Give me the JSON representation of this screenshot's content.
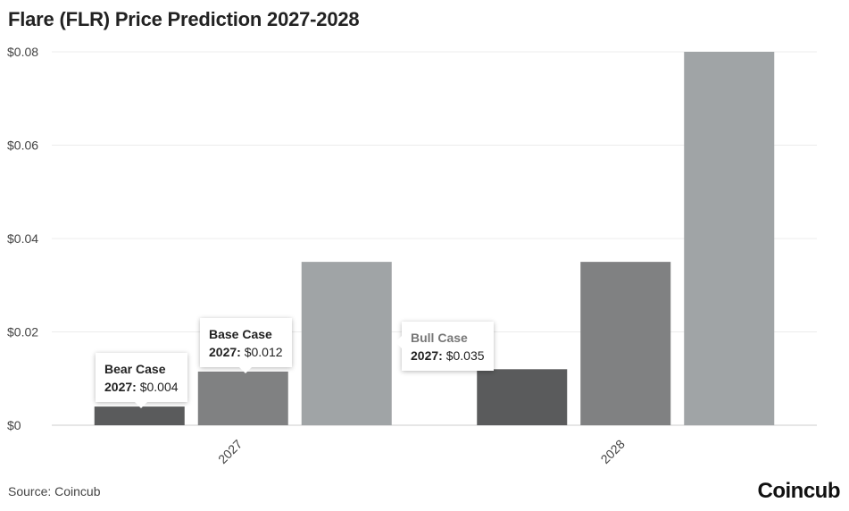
{
  "chart_data": {
    "type": "bar",
    "title": "Flare (FLR) Price Prediction 2027-2028",
    "categories": [
      "2027",
      "2028"
    ],
    "series": [
      {
        "name": "Bear Case",
        "values": [
          0.004,
          0.012
        ],
        "color": "#5a5b5c"
      },
      {
        "name": "Base Case",
        "values": [
          0.0115,
          0.035
        ],
        "color": "#808182"
      },
      {
        "name": "Bull Case",
        "values": [
          0.035,
          0.08
        ],
        "color": "#a0a4a6"
      }
    ],
    "ylim": [
      0,
      0.08
    ],
    "yticks": [
      {
        "value": 0,
        "label": "$0"
      },
      {
        "value": 0.02,
        "label": "$0.02"
      },
      {
        "value": 0.04,
        "label": "$0.04"
      },
      {
        "value": 0.06,
        "label": "$0.06"
      },
      {
        "value": 0.08,
        "label": "$0.08"
      }
    ],
    "grid": true,
    "tooltips": [
      {
        "title": "Bear Case",
        "year": "2027:",
        "value": "$0.004"
      },
      {
        "title": "Base Case",
        "year": "2027:",
        "value": "$0.012"
      },
      {
        "title": "Bull Case",
        "year": "2027:",
        "value": "$0.035"
      }
    ]
  },
  "footer": {
    "source": "Source: Coincub",
    "brand": "Coincub"
  }
}
